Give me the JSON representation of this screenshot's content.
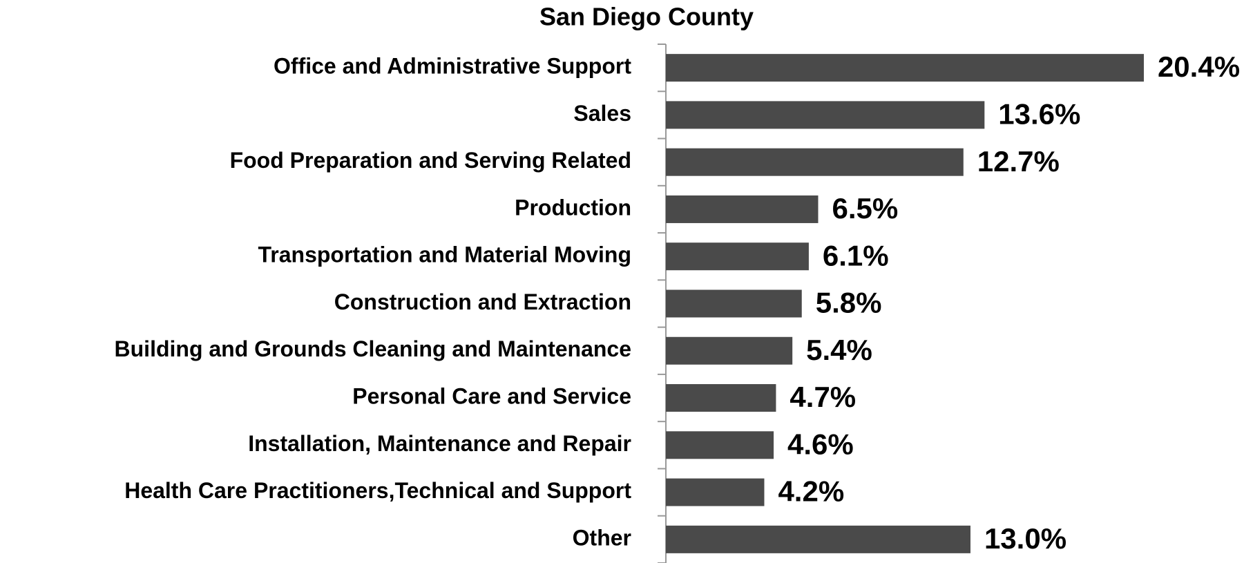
{
  "chart_data": {
    "type": "bar",
    "orientation": "horizontal",
    "title": "San Diego County",
    "categories": [
      "Office and Administrative Support",
      "Sales",
      "Food Preparation and Serving Related",
      "Production",
      "Transportation and Material Moving",
      "Construction and Extraction",
      "Building and Grounds Cleaning and Maintenance",
      "Personal Care and Service",
      "Installation, Maintenance and Repair",
      "Health Care Practitioners,Technical and Support",
      "Other"
    ],
    "values": [
      20.4,
      13.6,
      12.7,
      6.5,
      6.1,
      5.8,
      5.4,
      4.7,
      4.6,
      4.2,
      13.0
    ],
    "value_labels": [
      "20.4%",
      "13.6%",
      "12.7%",
      "6.5%",
      "6.1%",
      "5.8%",
      "5.4%",
      "4.7%",
      "4.6%",
      "4.2%",
      "13.0%"
    ],
    "color": "#4a4a4a",
    "xlim": [
      0,
      25
    ]
  }
}
